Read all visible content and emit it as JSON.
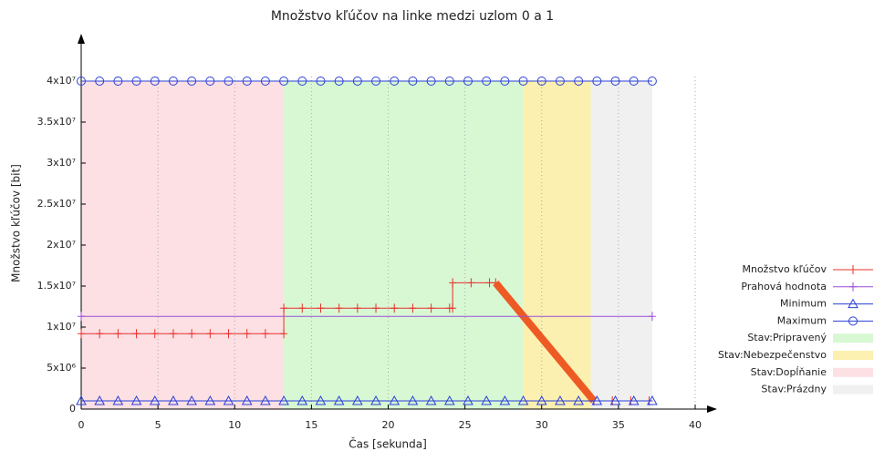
{
  "chart_data": {
    "type": "line",
    "title": "Množstvo kľúčov na linke medzi uzlom 0 a 1",
    "x_label": "Čas [sekunda]",
    "y_label": "Množstvo kľúčov [bit]",
    "xlim": [
      0,
      40
    ],
    "ylim": [
      0,
      40000000
    ],
    "xticks": [
      0,
      5,
      10,
      15,
      20,
      25,
      30,
      35,
      40
    ],
    "yticks": [
      {
        "value": 0,
        "label": "0"
      },
      {
        "value": 5000000,
        "label": "5x10⁶"
      },
      {
        "value": 10000000,
        "label": "1x10⁷"
      },
      {
        "value": 15000000,
        "label": "1.5x10⁷"
      },
      {
        "value": 20000000,
        "label": "2x10⁷"
      },
      {
        "value": 25000000,
        "label": "2.5x10⁷"
      },
      {
        "value": 30000000,
        "label": "3x10⁷"
      },
      {
        "value": 35000000,
        "label": "3.5x10⁷"
      },
      {
        "value": 40000000,
        "label": "4x10⁷"
      }
    ],
    "grid": true,
    "series": [
      {
        "name": "Množstvo kľúčov",
        "color": "#e8302a",
        "marker": "plus",
        "line_width": 1,
        "x": [
          0,
          1.2,
          2.4,
          3.6,
          4.8,
          6,
          7.2,
          8.4,
          9.6,
          10.8,
          12,
          13.2,
          13.2,
          14.4,
          15.6,
          16.8,
          18,
          19.2,
          20.4,
          21.6,
          22.8,
          24,
          24.2,
          24.2,
          25.4,
          26.6,
          27,
          33.4,
          34.6,
          35.8,
          37
        ],
        "values": [
          9200000,
          9200000,
          9200000,
          9200000,
          9200000,
          9200000,
          9200000,
          9200000,
          9200000,
          9200000,
          9200000,
          9200000,
          12300000,
          12300000,
          12300000,
          12300000,
          12300000,
          12300000,
          12300000,
          12300000,
          12300000,
          12300000,
          12300000,
          15400000,
          15400000,
          15400000,
          15400000,
          1000000,
          1000000,
          1000000,
          1000000
        ]
      },
      {
        "color": "#ee5a24",
        "line_width": 8,
        "x": [
          27,
          33.4
        ],
        "values": [
          15400000,
          1000000
        ]
      },
      {
        "name": "Prahová hodnota",
        "color": "#9b4fd8",
        "marker": "plus",
        "line_width": 1,
        "x": [
          0,
          37.2
        ],
        "values": [
          11300000,
          11300000
        ]
      },
      {
        "name": "Minimum",
        "color": "#2a3fd8",
        "marker": "triangle",
        "line_width": 1,
        "x": [
          0,
          1.2,
          2.4,
          3.6,
          4.8,
          6,
          7.2,
          8.4,
          9.6,
          10.8,
          12,
          13.2,
          14.4,
          15.6,
          16.8,
          18,
          19.2,
          20.4,
          21.6,
          22.8,
          24,
          25.2,
          26.4,
          27.6,
          28.8,
          30,
          31.2,
          32.4,
          33.6,
          34.8,
          36,
          37.2
        ],
        "values": [
          1000000,
          1000000,
          1000000,
          1000000,
          1000000,
          1000000,
          1000000,
          1000000,
          1000000,
          1000000,
          1000000,
          1000000,
          1000000,
          1000000,
          1000000,
          1000000,
          1000000,
          1000000,
          1000000,
          1000000,
          1000000,
          1000000,
          1000000,
          1000000,
          1000000,
          1000000,
          1000000,
          1000000,
          1000000,
          1000000,
          1000000,
          1000000
        ]
      },
      {
        "name": "Maximum",
        "color": "#2a3fd8",
        "marker": "circle",
        "line_width": 1,
        "x": [
          0,
          1.2,
          2.4,
          3.6,
          4.8,
          6,
          7.2,
          8.4,
          9.6,
          10.8,
          12,
          13.2,
          14.4,
          15.6,
          16.8,
          18,
          19.2,
          20.4,
          21.6,
          22.8,
          24,
          25.2,
          26.4,
          27.6,
          28.8,
          30,
          31.2,
          32.4,
          33.6,
          34.8,
          36,
          37.2
        ],
        "values": [
          40000000,
          40000000,
          40000000,
          40000000,
          40000000,
          40000000,
          40000000,
          40000000,
          40000000,
          40000000,
          40000000,
          40000000,
          40000000,
          40000000,
          40000000,
          40000000,
          40000000,
          40000000,
          40000000,
          40000000,
          40000000,
          40000000,
          40000000,
          40000000,
          40000000,
          40000000,
          40000000,
          40000000,
          40000000,
          40000000,
          40000000,
          40000000
        ]
      }
    ],
    "bands": [
      {
        "name": "Stav:Pripravený",
        "color": "#d8f8d4",
        "x": [
          13.2,
          28.8
        ]
      },
      {
        "name": "Stav:Nebezpečenstvo",
        "color": "#fbf0b0",
        "x": [
          28.8,
          33.2
        ]
      },
      {
        "name": "Stav:Dopĺňanie",
        "color": "#fce0e4",
        "x": [
          0,
          13.2
        ]
      },
      {
        "name": "Stav:Prázdny",
        "color": "#f0f0f0",
        "x": [
          33.2,
          37.2
        ]
      }
    ]
  }
}
